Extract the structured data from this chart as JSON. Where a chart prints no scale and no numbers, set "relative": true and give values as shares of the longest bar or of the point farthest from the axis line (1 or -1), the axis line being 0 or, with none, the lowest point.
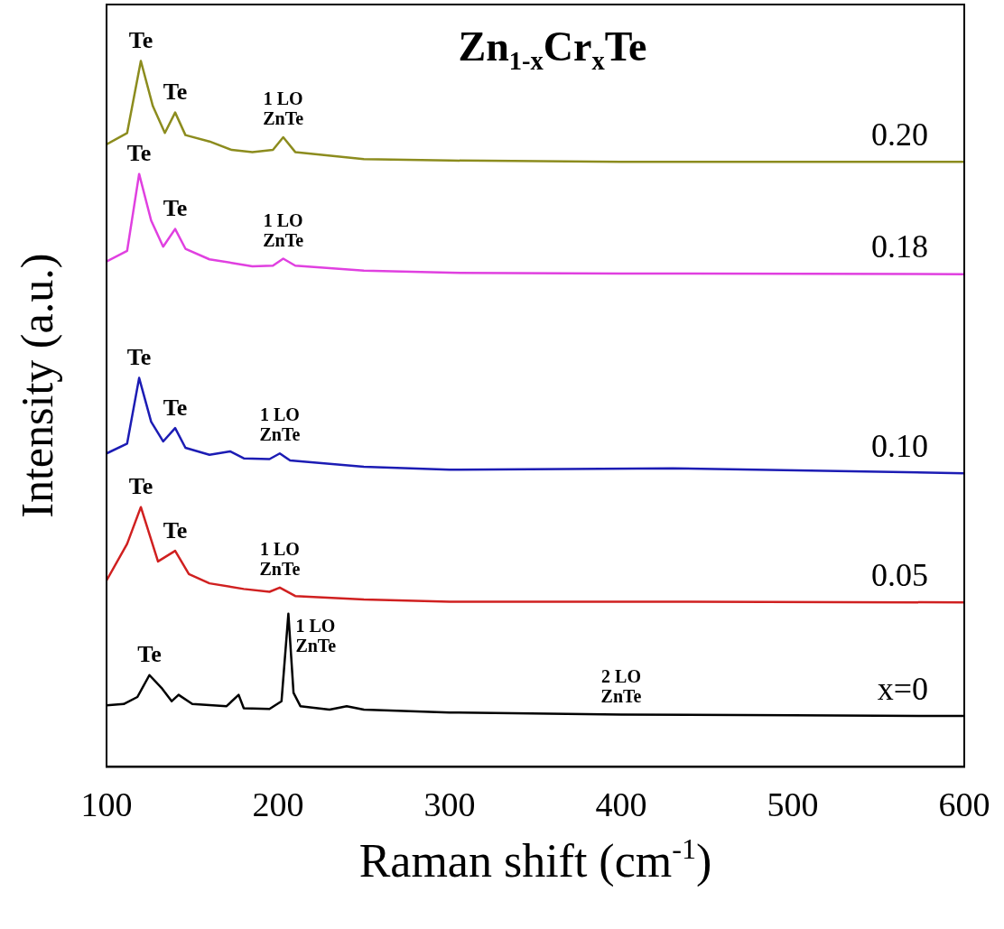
{
  "chart_data": {
    "type": "line",
    "title": "Zn$_{1-x}$Cr$_{x}$Te",
    "xlabel": "Raman shift (cm$^{-1}$)",
    "ylabel": "Intensity (a.u.)",
    "relative": true,
    "xlim": [
      100,
      600
    ],
    "xticks": [
      100,
      200,
      300,
      400,
      500,
      600
    ],
    "grid": false,
    "legend": false,
    "marker": "none",
    "line_style": "solid",
    "series": [
      {
        "name": "0.20",
        "color": "#8c8c1e",
        "x": [
          100,
          112,
          120,
          127,
          134,
          140,
          146,
          160,
          173,
          185,
          197,
          203,
          210,
          250,
          300,
          400,
          600
        ],
        "values": [
          0.882,
          0.898,
          1,
          0.936,
          0.898,
          0.927,
          0.895,
          0.886,
          0.874,
          0.871,
          0.874,
          0.892,
          0.871,
          0.861,
          0.859,
          0.857,
          0.857
        ]
      },
      {
        "name": "0.18",
        "color": "#e040e0",
        "x": [
          100,
          112,
          119,
          126,
          133,
          140,
          146,
          160,
          173,
          185,
          197,
          203,
          210,
          250,
          300,
          400,
          600
        ],
        "values": [
          0.716,
          0.731,
          0.84,
          0.774,
          0.737,
          0.762,
          0.734,
          0.719,
          0.714,
          0.709,
          0.71,
          0.72,
          0.71,
          0.703,
          0.7,
          0.699,
          0.698
        ]
      },
      {
        "name": "0.10",
        "color": "#1c1cb4",
        "x": [
          100,
          112,
          119,
          126,
          133,
          140,
          146,
          160,
          172,
          180,
          195,
          201,
          207,
          250,
          300,
          430,
          600
        ],
        "values": [
          0.444,
          0.458,
          0.551,
          0.489,
          0.461,
          0.48,
          0.452,
          0.442,
          0.447,
          0.437,
          0.436,
          0.444,
          0.434,
          0.425,
          0.421,
          0.423,
          0.416
        ]
      },
      {
        "name": "0.05",
        "color": "#d02020",
        "x": [
          100,
          112,
          120,
          130,
          140,
          148,
          160,
          180,
          195,
          201,
          210,
          250,
          300,
          400,
          600
        ],
        "values": [
          0.264,
          0.316,
          0.368,
          0.291,
          0.306,
          0.273,
          0.26,
          0.252,
          0.248,
          0.254,
          0.242,
          0.237,
          0.234,
          0.234,
          0.233
        ]
      },
      {
        "name": "x=0",
        "color": "#000000",
        "x": [
          100,
          110,
          118,
          125,
          132,
          138,
          142,
          150,
          170,
          177,
          180,
          195,
          202,
          206,
          209,
          213,
          230,
          240,
          250,
          300,
          400,
          500,
          600
        ],
        "values": [
          0.087,
          0.089,
          0.099,
          0.13,
          0.112,
          0.093,
          0.102,
          0.089,
          0.086,
          0.102,
          0.083,
          0.082,
          0.093,
          0.217,
          0.105,
          0.086,
          0.081,
          0.086,
          0.081,
          0.077,
          0.074,
          0.073,
          0.072
        ]
      }
    ],
    "annotations": [
      {
        "text": "Te",
        "x": 120,
        "y": 1
      },
      {
        "text": "Te",
        "x": 140,
        "y": 0.927
      },
      {
        "text": "1 LO\nZnTe",
        "x": 203,
        "y": 0.892
      },
      {
        "text": "Te",
        "x": 119,
        "y": 0.84
      },
      {
        "text": "Te",
        "x": 140,
        "y": 0.762
      },
      {
        "text": "1 LO\nZnTe",
        "x": 203,
        "y": 0.72
      },
      {
        "text": "Te",
        "x": 119,
        "y": 0.551
      },
      {
        "text": "Te",
        "x": 140,
        "y": 0.48
      },
      {
        "text": "1 LO\nZnTe",
        "x": 201,
        "y": 0.444
      },
      {
        "text": "Te",
        "x": 120,
        "y": 0.368
      },
      {
        "text": "Te",
        "x": 140,
        "y": 0.306
      },
      {
        "text": "1 LO\nZnTe",
        "x": 201,
        "y": 0.254
      },
      {
        "text": "Te",
        "x": 125,
        "y": 0.13
      },
      {
        "text": "1 LO\nZnTe",
        "x": 206,
        "y": 0.217
      },
      {
        "text": "2 LO\nZnTe",
        "x": 400,
        "y": 0.074
      }
    ]
  }
}
